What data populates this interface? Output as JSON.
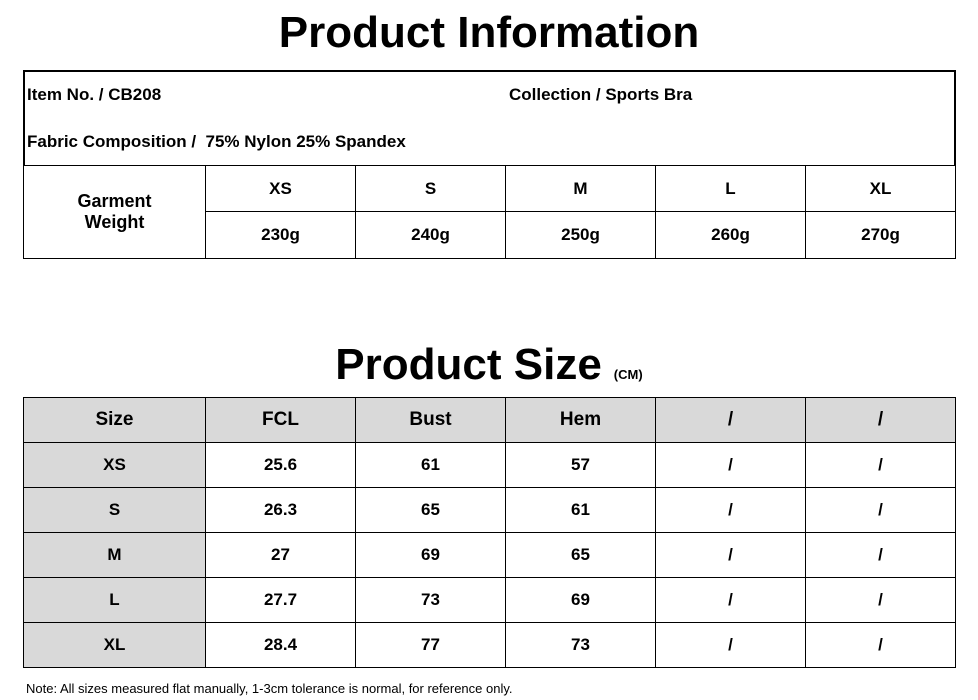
{
  "header": {
    "title": "Product Information"
  },
  "info": {
    "item": "Item No. / CB208",
    "collection": "Collection / Sports Bra",
    "fabric": "Fabric Composition /  75% Nylon 25% Spandex"
  },
  "weight": {
    "label": "Garment Weight",
    "sizes": [
      "XS",
      "S",
      "M",
      "L",
      "XL"
    ],
    "values": [
      "230g",
      "240g",
      "250g",
      "260g",
      "270g"
    ]
  },
  "size_chart": {
    "title": "Product Size",
    "unit": "(CM)",
    "header": [
      "Size",
      "FCL",
      "Bust",
      "Hem",
      "/",
      "/"
    ],
    "rows": [
      [
        "XS",
        "25.6",
        "61",
        "57",
        "/",
        "/"
      ],
      [
        "S",
        "26.3",
        "65",
        "61",
        "/",
        "/"
      ],
      [
        "M",
        "27",
        "69",
        "65",
        "/",
        "/"
      ],
      [
        "L",
        "27.7",
        "73",
        "69",
        "/",
        "/"
      ],
      [
        "XL",
        "28.4",
        "77",
        "73",
        "/",
        "/"
      ]
    ]
  },
  "note": "Note: All sizes measured flat manually, 1-3cm tolerance is normal, for reference only."
}
